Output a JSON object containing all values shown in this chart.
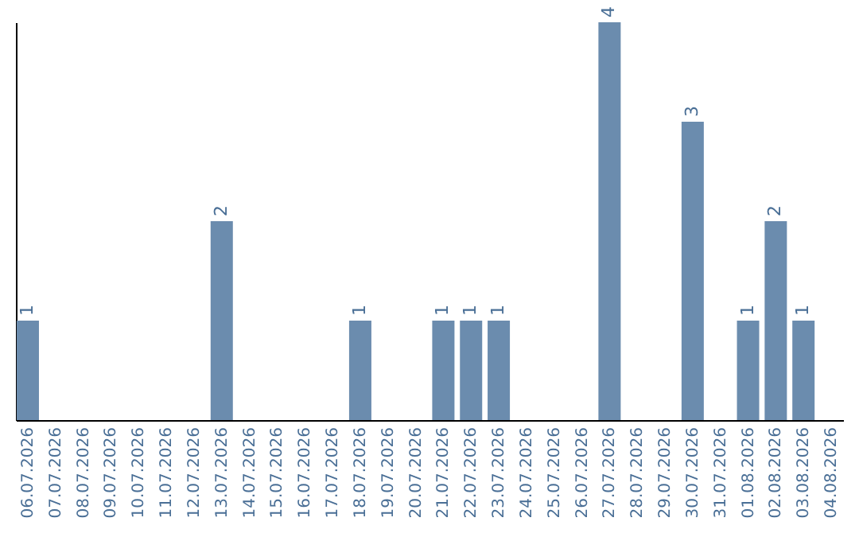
{
  "chart_data": {
    "type": "bar",
    "categories": [
      "06.07.2026",
      "07.07.2026",
      "08.07.2026",
      "09.07.2026",
      "10.07.2026",
      "11.07.2026",
      "12.07.2026",
      "13.07.2026",
      "14.07.2026",
      "15.07.2026",
      "16.07.2026",
      "17.07.2026",
      "18.07.2026",
      "19.07.2026",
      "20.07.2026",
      "21.07.2026",
      "22.07.2026",
      "23.07.2026",
      "24.07.2026",
      "25.07.2026",
      "26.07.2026",
      "27.07.2026",
      "28.07.2026",
      "29.07.2026",
      "30.07.2026",
      "31.07.2026",
      "01.08.2026",
      "02.08.2026",
      "03.08.2026",
      "04.08.2026"
    ],
    "values": [
      1,
      0,
      0,
      0,
      0,
      0,
      0,
      2,
      0,
      0,
      0,
      0,
      1,
      0,
      0,
      1,
      1,
      1,
      0,
      0,
      0,
      4,
      0,
      0,
      3,
      0,
      1,
      2,
      1,
      0
    ],
    "value_labels": [
      "1",
      null,
      null,
      null,
      null,
      null,
      null,
      "2",
      null,
      null,
      null,
      null,
      "1",
      null,
      null,
      "1",
      "1",
      "1",
      null,
      null,
      null,
      "4",
      null,
      null,
      "3",
      null,
      "1",
      "2",
      "1",
      null
    ],
    "color": "#6b8cae",
    "tick_labels": "x",
    "grid": false
  }
}
